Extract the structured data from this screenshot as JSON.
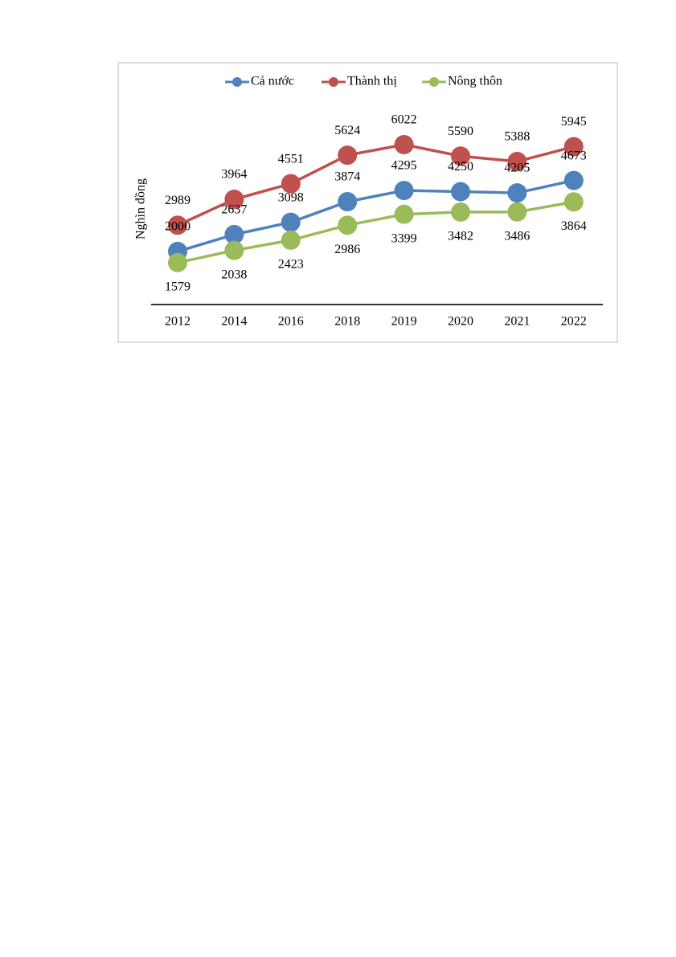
{
  "chart_data": {
    "type": "line",
    "y_label": "Nghìn đồng",
    "categories": [
      "2012",
      "2014",
      "2016",
      "2018",
      "2019",
      "2020",
      "2021",
      "2022"
    ],
    "series": [
      {
        "name": "Cả nước",
        "color": "#4f81bd",
        "values": [
          2000,
          2637,
          3098,
          3874,
          4295,
          4250,
          4205,
          4673
        ]
      },
      {
        "name": "Thành thị",
        "color": "#c0504d",
        "values": [
          2989,
          3964,
          4551,
          5624,
          6022,
          5590,
          5388,
          5945
        ]
      },
      {
        "name": "Nông thôn",
        "color": "#9bbb59",
        "values": [
          1579,
          2038,
          2423,
          2986,
          3399,
          3482,
          3486,
          3864
        ]
      }
    ]
  }
}
